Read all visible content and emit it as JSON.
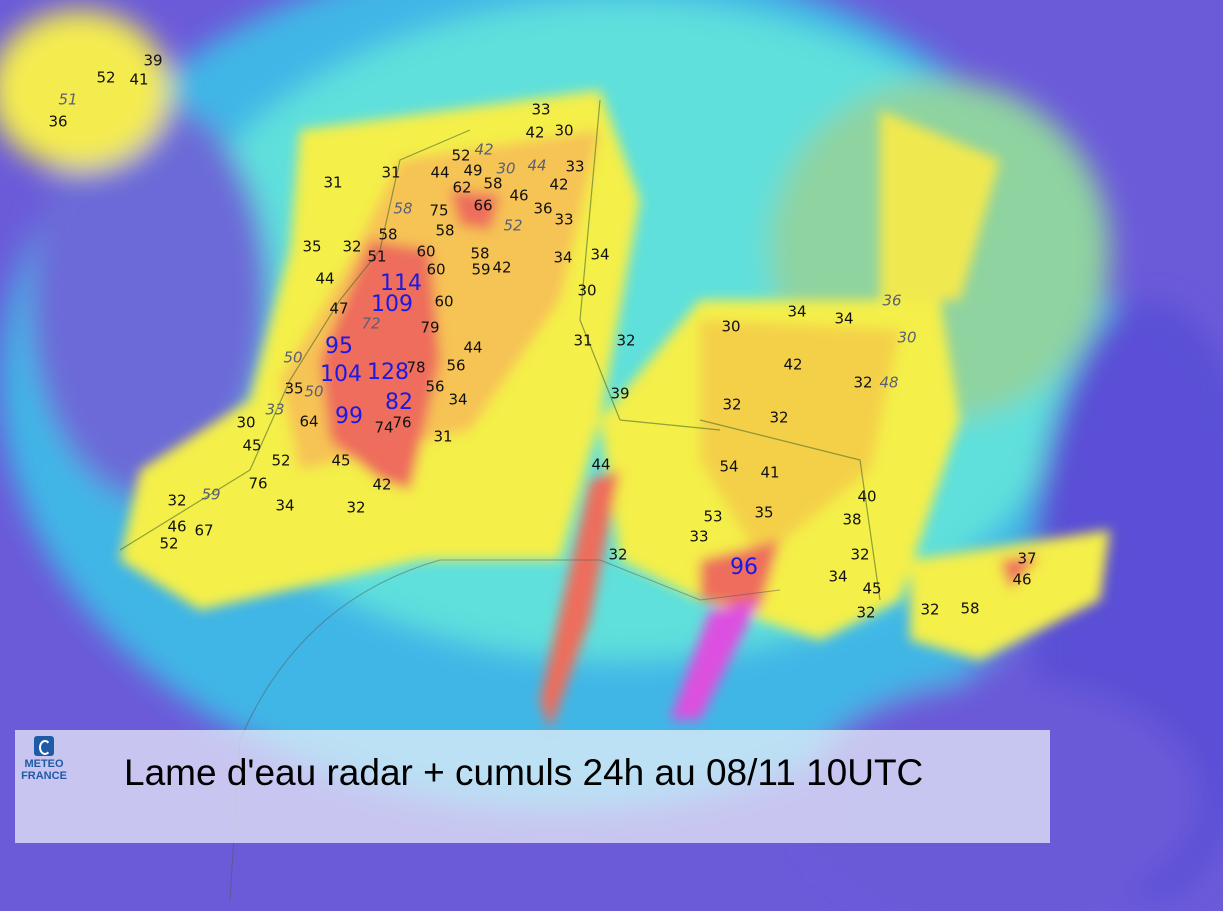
{
  "title": "Lame d'eau radar + cumuls 24h au 08/11 10UTC",
  "logo": {
    "line1": "METEO",
    "line2": "FRANCE",
    "icon": "meteo-france-logo-icon"
  },
  "colors": {
    "heavy_label": "#1a1ae6",
    "normal_label": "#111111",
    "radar_label": "#5a5f78"
  },
  "cumuls_mm": [
    {
      "v": "39",
      "t": "n"
    },
    {
      "v": "52",
      "t": "n"
    },
    {
      "v": "41",
      "t": "n"
    },
    {
      "v": "51",
      "t": "i"
    },
    {
      "v": "36",
      "t": "n"
    },
    {
      "v": "33",
      "t": "n"
    },
    {
      "v": "42",
      "t": "n"
    },
    {
      "v": "30",
      "t": "n"
    },
    {
      "v": "52",
      "t": "n"
    },
    {
      "v": "42",
      "t": "i"
    },
    {
      "v": "44",
      "t": "n"
    },
    {
      "v": "49",
      "t": "n"
    },
    {
      "v": "30",
      "t": "i"
    },
    {
      "v": "44",
      "t": "i"
    },
    {
      "v": "33",
      "t": "n"
    },
    {
      "v": "62",
      "t": "n"
    },
    {
      "v": "58",
      "t": "n"
    },
    {
      "v": "46",
      "t": "n"
    },
    {
      "v": "42",
      "t": "n"
    },
    {
      "v": "31",
      "t": "n"
    },
    {
      "v": "31",
      "t": "n"
    },
    {
      "v": "58",
      "t": "i"
    },
    {
      "v": "75",
      "t": "n"
    },
    {
      "v": "66",
      "t": "n"
    },
    {
      "v": "36",
      "t": "n"
    },
    {
      "v": "33",
      "t": "n"
    },
    {
      "v": "52",
      "t": "i"
    },
    {
      "v": "58",
      "t": "n"
    },
    {
      "v": "58",
      "t": "n"
    },
    {
      "v": "35",
      "t": "n"
    },
    {
      "v": "32",
      "t": "n"
    },
    {
      "v": "51",
      "t": "n"
    },
    {
      "v": "60",
      "t": "n"
    },
    {
      "v": "58",
      "t": "n"
    },
    {
      "v": "59",
      "t": "n"
    },
    {
      "v": "42",
      "t": "n"
    },
    {
      "v": "34",
      "t": "n"
    },
    {
      "v": "34",
      "t": "n"
    },
    {
      "v": "60",
      "t": "n"
    },
    {
      "v": "44",
      "t": "n"
    },
    {
      "v": "114",
      "t": "b"
    },
    {
      "v": "30",
      "t": "n"
    },
    {
      "v": "47",
      "t": "n"
    },
    {
      "v": "109",
      "t": "b"
    },
    {
      "v": "60",
      "t": "n"
    },
    {
      "v": "72",
      "t": "i"
    },
    {
      "v": "79",
      "t": "n"
    },
    {
      "v": "95",
      "t": "b"
    },
    {
      "v": "44",
      "t": "n"
    },
    {
      "v": "50",
      "t": "i"
    },
    {
      "v": "104",
      "t": "b"
    },
    {
      "v": "128",
      "t": "b"
    },
    {
      "v": "78",
      "t": "n"
    },
    {
      "v": "56",
      "t": "n"
    },
    {
      "v": "35",
      "t": "n"
    },
    {
      "v": "50",
      "t": "i"
    },
    {
      "v": "56",
      "t": "n"
    },
    {
      "v": "33",
      "t": "i"
    },
    {
      "v": "82",
      "t": "b"
    },
    {
      "v": "34",
      "t": "n"
    },
    {
      "v": "99",
      "t": "b"
    },
    {
      "v": "30",
      "t": "n"
    },
    {
      "v": "64",
      "t": "n"
    },
    {
      "v": "74",
      "t": "n"
    },
    {
      "v": "76",
      "t": "n"
    },
    {
      "v": "31",
      "t": "n"
    },
    {
      "v": "45",
      "t": "n"
    },
    {
      "v": "52",
      "t": "n"
    },
    {
      "v": "45",
      "t": "n"
    },
    {
      "v": "42",
      "t": "n"
    },
    {
      "v": "76",
      "t": "n"
    },
    {
      "v": "34",
      "t": "n"
    },
    {
      "v": "32",
      "t": "n"
    },
    {
      "v": "59",
      "t": "i"
    },
    {
      "v": "32",
      "t": "n"
    },
    {
      "v": "46",
      "t": "n"
    },
    {
      "v": "67",
      "t": "n"
    },
    {
      "v": "52",
      "t": "n"
    },
    {
      "v": "31",
      "t": "n"
    },
    {
      "v": "32",
      "t": "n"
    },
    {
      "v": "39",
      "t": "n"
    },
    {
      "v": "30",
      "t": "n"
    },
    {
      "v": "34",
      "t": "n"
    },
    {
      "v": "34",
      "t": "n"
    },
    {
      "v": "36",
      "t": "i"
    },
    {
      "v": "30",
      "t": "i"
    },
    {
      "v": "42",
      "t": "n"
    },
    {
      "v": "32",
      "t": "n"
    },
    {
      "v": "48",
      "t": "i"
    },
    {
      "v": "32",
      "t": "n"
    },
    {
      "v": "32",
      "t": "n"
    },
    {
      "v": "44",
      "t": "n"
    },
    {
      "v": "54",
      "t": "n"
    },
    {
      "v": "41",
      "t": "n"
    },
    {
      "v": "40",
      "t": "n"
    },
    {
      "v": "53",
      "t": "n"
    },
    {
      "v": "35",
      "t": "n"
    },
    {
      "v": "38",
      "t": "n"
    },
    {
      "v": "33",
      "t": "n"
    },
    {
      "v": "32",
      "t": "n"
    },
    {
      "v": "96",
      "t": "b"
    },
    {
      "v": "32",
      "t": "n"
    },
    {
      "v": "34",
      "t": "n"
    },
    {
      "v": "45",
      "t": "n"
    },
    {
      "v": "32",
      "t": "n"
    },
    {
      "v": "37",
      "t": "n"
    },
    {
      "v": "46",
      "t": "n"
    },
    {
      "v": "32",
      "t": "n"
    },
    {
      "v": "58",
      "t": "n"
    }
  ]
}
